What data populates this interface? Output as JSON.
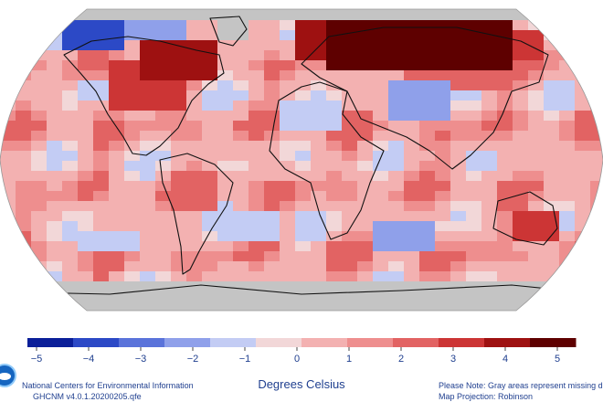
{
  "colors": {
    "missing": "#c4c4c4",
    "ocean_base": "#f3a9aa",
    "scale": [
      "#0b1f99",
      "#2c49c6",
      "#5a73da",
      "#8fa0ea",
      "#c3ccf4",
      "#f2d7d8",
      "#f3b1b1",
      "#ee8e8e",
      "#e26363",
      "#cc3535",
      "#9e1111",
      "#5e0000"
    ],
    "text": "#1f3f8f"
  },
  "legend": {
    "ticks": [
      "−5",
      "−4",
      "−3",
      "−2",
      "−1",
      "0",
      "1",
      "2",
      "3",
      "4",
      "5"
    ],
    "units": "Degrees Celsius"
  },
  "footer": {
    "org_line1": "National Centers for Environmental Information",
    "org_line2": "GHCNM v4.0.1.20200205.qfe",
    "note_line1": "Please Note: Gray areas represent missing da",
    "note_line2": "Map Projection: Robinson"
  },
  "icons": {
    "logo": "noaa-logo-icon"
  }
}
